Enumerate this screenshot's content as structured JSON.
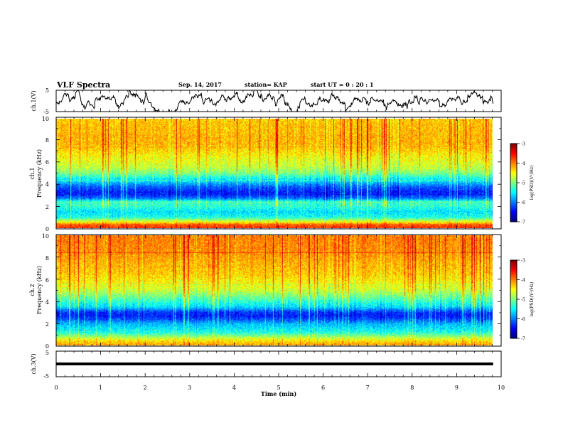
{
  "header": {
    "title": "VLF Spectra",
    "date": "Sep. 14, 2017",
    "station": "station= KAP",
    "start_ut": "start  UT =   0  : 20 : 1"
  },
  "chart_data": [
    {
      "type": "line",
      "ylabel": "ch.1(V)",
      "ylim": [
        -5,
        5
      ],
      "yticks": [
        "5",
        "-5"
      ],
      "xlim": [
        0,
        10
      ],
      "color": "#000000"
    },
    {
      "type": "heatmap",
      "ylabel_top": "ch.1",
      "ylabel": "Frequency (kHz)",
      "ylim": [
        0,
        10
      ],
      "yticks": [
        "0",
        "2",
        "4",
        "6",
        "8",
        "10"
      ],
      "xlim": [
        0,
        10
      ],
      "data_end_min": 9.82,
      "spectral_profile_log_psd": [
        [
          0.0,
          -3.7
        ],
        [
          0.3,
          -3.8
        ],
        [
          0.6,
          -4.6
        ],
        [
          1.0,
          -5.4
        ],
        [
          1.5,
          -5.6
        ],
        [
          2.0,
          -5.3
        ],
        [
          2.4,
          -5.2
        ],
        [
          2.7,
          -6.0
        ],
        [
          3.0,
          -6.3
        ],
        [
          3.3,
          -6.4
        ],
        [
          3.8,
          -6.1
        ],
        [
          4.2,
          -5.7
        ],
        [
          4.6,
          -5.4
        ],
        [
          5.0,
          -5.0
        ],
        [
          5.6,
          -4.7
        ],
        [
          6.5,
          -4.5
        ],
        [
          7.5,
          -4.2
        ],
        [
          8.5,
          -4.2
        ],
        [
          9.5,
          -4.25
        ],
        [
          10.0,
          -4.3
        ]
      ],
      "colorbar": {
        "label": "log(PSD)(V²/Hz)",
        "range": [
          -7,
          -3
        ],
        "ticks": [
          "-3",
          "-4",
          "-5",
          "-6",
          "-7"
        ]
      }
    },
    {
      "type": "heatmap",
      "ylabel_top": "ch.2",
      "ylabel": "Frequency (kHz)",
      "ylim": [
        0,
        10
      ],
      "yticks": [
        "0",
        "2",
        "4",
        "6",
        "8",
        "10"
      ],
      "xlim": [
        0,
        10
      ],
      "data_end_min": 9.82,
      "spectral_profile_log_psd": [
        [
          0.0,
          -4.1
        ],
        [
          0.4,
          -4.4
        ],
        [
          0.8,
          -4.9
        ],
        [
          1.2,
          -5.4
        ],
        [
          1.6,
          -5.6
        ],
        [
          2.0,
          -5.8
        ],
        [
          2.4,
          -6.2
        ],
        [
          2.7,
          -6.4
        ],
        [
          3.0,
          -6.3
        ],
        [
          3.5,
          -5.6
        ],
        [
          4.0,
          -5.3
        ],
        [
          4.5,
          -5.0
        ],
        [
          5.0,
          -4.7
        ],
        [
          5.6,
          -4.5
        ],
        [
          6.5,
          -4.3
        ],
        [
          7.5,
          -4.2
        ],
        [
          8.5,
          -4.05
        ],
        [
          9.5,
          -4.0
        ],
        [
          10.0,
          -4.0
        ]
      ],
      "colorbar": {
        "label": "log(PSD)(V²/Hz)",
        "range": [
          -7,
          -3
        ],
        "ticks": [
          "-3",
          "-4",
          "-5",
          "-6",
          "-7"
        ]
      }
    },
    {
      "type": "line",
      "ylabel": "ch.3(V)",
      "ylim": [
        -5,
        5
      ],
      "yticks": [
        "5",
        "-5"
      ],
      "xlim": [
        0,
        10
      ],
      "constant_value": 0,
      "color": "#000000"
    }
  ],
  "xaxis": {
    "label": "Time (min)",
    "ticks": [
      "0",
      "1",
      "2",
      "3",
      "4",
      "5",
      "6",
      "7",
      "8",
      "9",
      "10"
    ]
  }
}
